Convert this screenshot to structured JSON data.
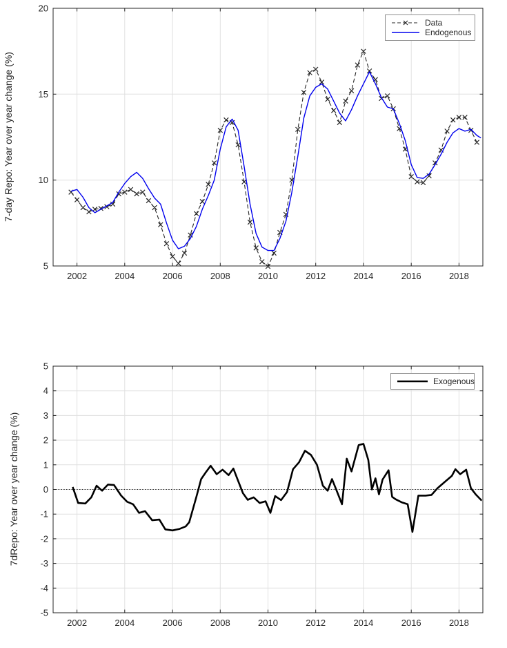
{
  "background": "#ffffff",
  "colors": {
    "data_series": "#262626",
    "endogenous_series": "#0000EE",
    "exogenous_series": "#000000",
    "grid": "#e0e0e0",
    "axis": "#262626"
  },
  "top_chart": {
    "ylabel": "7-day Repo: Year over year change (%)",
    "legend": [
      "Data",
      "Endogenous"
    ]
  },
  "bottom_chart": {
    "ylabel": "7dRepo: Year over year change (%)",
    "legend": [
      "Exogenous"
    ]
  },
  "chart_data": [
    {
      "type": "line",
      "title": "",
      "xlabel": "",
      "ylabel": "7-day Repo: Year over year change (%)",
      "xlim": [
        2001,
        2019
      ],
      "ylim": [
        5,
        20
      ],
      "xticks": [
        2002,
        2004,
        2006,
        2008,
        2010,
        2012,
        2014,
        2016,
        2018
      ],
      "yticks": [
        5,
        10,
        15,
        20
      ],
      "grid": true,
      "legend_position": "top-right",
      "legend": {
        "entries": [
          "Data",
          "Endogenous"
        ]
      },
      "x": [
        2001.75,
        2002,
        2002.25,
        2002.5,
        2002.75,
        2003,
        2003.25,
        2003.5,
        2003.75,
        2004,
        2004.25,
        2004.5,
        2004.75,
        2005,
        2005.25,
        2005.5,
        2005.75,
        2006,
        2006.25,
        2006.5,
        2006.75,
        2007,
        2007.25,
        2007.5,
        2007.75,
        2008,
        2008.25,
        2008.5,
        2008.75,
        2009,
        2009.25,
        2009.5,
        2009.75,
        2010,
        2010.25,
        2010.5,
        2010.75,
        2011,
        2011.25,
        2011.5,
        2011.75,
        2012,
        2012.25,
        2012.5,
        2012.75,
        2013,
        2013.25,
        2013.5,
        2013.75,
        2014,
        2014.25,
        2014.5,
        2014.75,
        2015,
        2015.25,
        2015.5,
        2015.75,
        2016,
        2016.25,
        2016.5,
        2016.75,
        2017,
        2017.25,
        2017.5,
        2017.75,
        2018,
        2018.25,
        2018.5,
        2018.75
      ],
      "series": [
        {
          "name": "Data",
          "line": "dashed",
          "marker": "x",
          "color": "#262626",
          "width": 1.1,
          "values": [
            9.3,
            8.85,
            8.4,
            8.15,
            8.3,
            8.35,
            8.45,
            8.6,
            9.2,
            9.3,
            9.45,
            9.2,
            9.3,
            8.8,
            8.4,
            7.4,
            6.3,
            5.55,
            5.15,
            5.75,
            6.8,
            8.05,
            8.75,
            9.75,
            11.0,
            12.9,
            13.5,
            13.35,
            12.05,
            9.9,
            7.55,
            6.05,
            5.25,
            4.97,
            5.75,
            6.95,
            8.0,
            10.0,
            12.95,
            15.1,
            16.25,
            16.45,
            15.7,
            14.7,
            14.05,
            13.35,
            14.6,
            15.2,
            16.7,
            17.5,
            16.35,
            15.85,
            14.75,
            14.9,
            14.15,
            13.0,
            11.8,
            10.2,
            9.9,
            9.85,
            10.25,
            11.0,
            11.75,
            12.85,
            13.5,
            13.65,
            13.65,
            12.9,
            12.2
          ]
        },
        {
          "name": "Endogenous",
          "line": "solid",
          "marker": "none",
          "color": "#0000EE",
          "width": 1.4,
          "x": [
            2001.75,
            2002,
            2002.25,
            2002.5,
            2002.75,
            2003,
            2003.25,
            2003.5,
            2003.75,
            2004,
            2004.25,
            2004.5,
            2004.75,
            2005,
            2005.25,
            2005.5,
            2005.75,
            2006,
            2006.25,
            2006.5,
            2006.75,
            2007,
            2007.25,
            2007.5,
            2007.75,
            2008,
            2008.25,
            2008.5,
            2008.75,
            2009,
            2009.25,
            2009.5,
            2009.75,
            2010,
            2010.25,
            2010.5,
            2010.75,
            2011,
            2011.25,
            2011.5,
            2011.75,
            2012,
            2012.25,
            2012.5,
            2012.75,
            2013,
            2013.25,
            2013.5,
            2013.75,
            2014,
            2014.25,
            2014.5,
            2014.75,
            2015,
            2015.25,
            2015.5,
            2015.75,
            2016,
            2016.25,
            2016.5,
            2016.75,
            2017,
            2017.25,
            2017.5,
            2017.75,
            2018,
            2018.25,
            2018.5,
            2018.75,
            2018.92
          ],
          "values": [
            9.35,
            9.45,
            9.0,
            8.4,
            8.1,
            8.3,
            8.5,
            8.7,
            9.3,
            9.8,
            10.2,
            10.45,
            10.1,
            9.5,
            8.95,
            8.6,
            7.5,
            6.5,
            6.0,
            6.15,
            6.6,
            7.3,
            8.3,
            9.1,
            10.0,
            11.8,
            13.1,
            13.55,
            12.9,
            10.8,
            8.6,
            6.9,
            6.1,
            5.9,
            5.9,
            6.6,
            7.6,
            9.3,
            11.4,
            13.6,
            14.9,
            15.4,
            15.6,
            15.3,
            14.6,
            13.9,
            13.45,
            14.1,
            14.9,
            15.6,
            16.3,
            15.6,
            14.8,
            14.25,
            14.15,
            13.3,
            12.3,
            10.9,
            10.15,
            10.1,
            10.35,
            10.9,
            11.5,
            12.2,
            12.75,
            13.0,
            12.85,
            12.95,
            12.6,
            12.45
          ]
        }
      ]
    },
    {
      "type": "line",
      "title": "",
      "xlabel": "",
      "ylabel": "7dRepo: Year over year change (%)",
      "xlim": [
        2001,
        2019
      ],
      "ylim": [
        -5,
        5
      ],
      "xticks": [
        2002,
        2004,
        2006,
        2008,
        2010,
        2012,
        2014,
        2016,
        2018
      ],
      "yticks": [
        -5,
        -4,
        -3,
        -2,
        -1,
        0,
        1,
        2,
        3,
        4,
        5
      ],
      "grid": true,
      "zero_line": true,
      "legend_position": "top-right",
      "legend": {
        "entries": [
          "Exogenous"
        ]
      },
      "series": [
        {
          "name": "Exogenous",
          "line": "solid",
          "marker": "none",
          "color": "#000000",
          "width": 2.6,
          "x": [
            2001.82,
            2002.05,
            2002.35,
            2002.6,
            2002.82,
            2003.05,
            2003.3,
            2003.55,
            2003.85,
            2004.1,
            2004.35,
            2004.6,
            2004.85,
            2005.15,
            2005.45,
            2005.7,
            2006,
            2006.3,
            2006.55,
            2006.7,
            2007,
            2007.2,
            2007.4,
            2007.6,
            2007.85,
            2008.1,
            2008.35,
            2008.55,
            2008.75,
            2008.95,
            2009.15,
            2009.4,
            2009.65,
            2009.9,
            2010.1,
            2010.3,
            2010.55,
            2010.8,
            2011.05,
            2011.3,
            2011.55,
            2011.8,
            2012.05,
            2012.3,
            2012.5,
            2012.68,
            2012.87,
            2013.1,
            2013.3,
            2013.5,
            2013.8,
            2014,
            2014.2,
            2014.35,
            2014.5,
            2014.65,
            2014.8,
            2015.05,
            2015.2,
            2015.35,
            2015.6,
            2015.85,
            2016.05,
            2016.3,
            2016.6,
            2016.85,
            2017.1,
            2017.4,
            2017.7,
            2017.85,
            2018.05,
            2018.3,
            2018.5,
            2018.7,
            2018.95
          ],
          "values": [
            0.1,
            -0.55,
            -0.57,
            -0.32,
            0.15,
            -0.05,
            0.2,
            0.18,
            -0.25,
            -0.5,
            -0.6,
            -0.95,
            -0.88,
            -1.25,
            -1.22,
            -1.62,
            -1.66,
            -1.6,
            -1.5,
            -1.33,
            -0.3,
            0.42,
            0.7,
            0.96,
            0.62,
            0.8,
            0.58,
            0.85,
            0.35,
            -0.15,
            -0.42,
            -0.32,
            -0.55,
            -0.48,
            -0.95,
            -0.27,
            -0.43,
            -0.1,
            0.82,
            1.1,
            1.57,
            1.4,
            1.0,
            0.15,
            -0.05,
            0.42,
            -0.03,
            -0.6,
            1.25,
            0.73,
            1.8,
            1.85,
            1.2,
            0.0,
            0.45,
            -0.2,
            0.4,
            0.78,
            -0.3,
            -0.4,
            -0.52,
            -0.6,
            -1.72,
            -0.25,
            -0.25,
            -0.22,
            0.05,
            0.3,
            0.55,
            0.82,
            0.62,
            0.8,
            0.05,
            -0.2,
            -0.45
          ]
        }
      ]
    }
  ]
}
